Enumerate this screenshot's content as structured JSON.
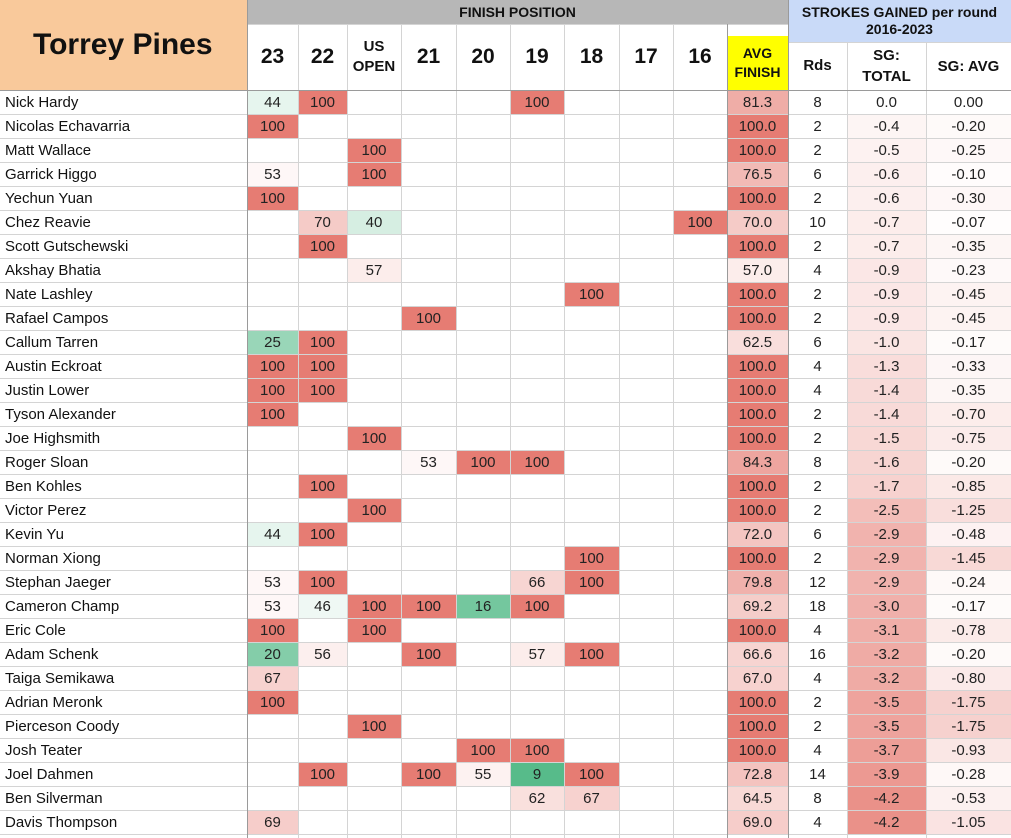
{
  "title": "Torrey Pines",
  "header": {
    "finish_position": "FINISH POSITION",
    "strokes_gained": "STROKES GAINED per round 2016-2023",
    "years": [
      "23",
      "22",
      "US OPEN",
      "21",
      "20",
      "19",
      "18",
      "17",
      "16"
    ],
    "avg_finish": "AVG FINISH",
    "rds": "Rds",
    "sg_total": "SG: TOTAL",
    "sg_avg": "SG: AVG"
  },
  "colors": {
    "title_bg": "#f9c99b",
    "finish_header_bg": "#b7b7b7",
    "sg_header_bg": "#c9daf8",
    "avg_header_bg": "#ffff00",
    "worst_finish": "#e67c73",
    "best_finish": "#57bb8a",
    "sg_negative": "#e67c73"
  },
  "rows": [
    {
      "name": "Nick Hardy",
      "f": [
        "44",
        "100",
        "",
        "",
        "",
        "100",
        "",
        "",
        ""
      ],
      "avg": "81.3",
      "rds": "8",
      "sg_total": "0.0",
      "sg_avg": "0.00"
    },
    {
      "name": "Nicolas Echavarria",
      "f": [
        "100",
        "",
        "",
        "",
        "",
        "",
        "",
        "",
        ""
      ],
      "avg": "100.0",
      "rds": "2",
      "sg_total": "-0.4",
      "sg_avg": "-0.20"
    },
    {
      "name": "Matt Wallace",
      "f": [
        "",
        "",
        "100",
        "",
        "",
        "",
        "",
        "",
        ""
      ],
      "avg": "100.0",
      "rds": "2",
      "sg_total": "-0.5",
      "sg_avg": "-0.25"
    },
    {
      "name": "Garrick Higgo",
      "f": [
        "53",
        "",
        "100",
        "",
        "",
        "",
        "",
        "",
        ""
      ],
      "avg": "76.5",
      "rds": "6",
      "sg_total": "-0.6",
      "sg_avg": "-0.10"
    },
    {
      "name": "Yechun Yuan",
      "f": [
        "100",
        "",
        "",
        "",
        "",
        "",
        "",
        "",
        ""
      ],
      "avg": "100.0",
      "rds": "2",
      "sg_total": "-0.6",
      "sg_avg": "-0.30"
    },
    {
      "name": "Chez Reavie",
      "f": [
        "",
        "70",
        "40",
        "",
        "",
        "",
        "",
        "",
        "100"
      ],
      "avg": "70.0",
      "rds": "10",
      "sg_total": "-0.7",
      "sg_avg": "-0.07"
    },
    {
      "name": "Scott Gutschewski",
      "f": [
        "",
        "100",
        "",
        "",
        "",
        "",
        "",
        "",
        ""
      ],
      "avg": "100.0",
      "rds": "2",
      "sg_total": "-0.7",
      "sg_avg": "-0.35"
    },
    {
      "name": "Akshay Bhatia",
      "f": [
        "",
        "",
        "57",
        "",
        "",
        "",
        "",
        "",
        ""
      ],
      "avg": "57.0",
      "rds": "4",
      "sg_total": "-0.9",
      "sg_avg": "-0.23"
    },
    {
      "name": "Nate Lashley",
      "f": [
        "",
        "",
        "",
        "",
        "",
        "",
        "100",
        "",
        ""
      ],
      "avg": "100.0",
      "rds": "2",
      "sg_total": "-0.9",
      "sg_avg": "-0.45"
    },
    {
      "name": "Rafael Campos",
      "f": [
        "",
        "",
        "",
        "100",
        "",
        "",
        "",
        "",
        ""
      ],
      "avg": "100.0",
      "rds": "2",
      "sg_total": "-0.9",
      "sg_avg": "-0.45"
    },
    {
      "name": "Callum Tarren",
      "f": [
        "25",
        "100",
        "",
        "",
        "",
        "",
        "",
        "",
        ""
      ],
      "avg": "62.5",
      "rds": "6",
      "sg_total": "-1.0",
      "sg_avg": "-0.17"
    },
    {
      "name": "Austin Eckroat",
      "f": [
        "100",
        "100",
        "",
        "",
        "",
        "",
        "",
        "",
        ""
      ],
      "avg": "100.0",
      "rds": "4",
      "sg_total": "-1.3",
      "sg_avg": "-0.33"
    },
    {
      "name": "Justin Lower",
      "f": [
        "100",
        "100",
        "",
        "",
        "",
        "",
        "",
        "",
        ""
      ],
      "avg": "100.0",
      "rds": "4",
      "sg_total": "-1.4",
      "sg_avg": "-0.35"
    },
    {
      "name": "Tyson Alexander",
      "f": [
        "100",
        "",
        "",
        "",
        "",
        "",
        "",
        "",
        ""
      ],
      "avg": "100.0",
      "rds": "2",
      "sg_total": "-1.4",
      "sg_avg": "-0.70"
    },
    {
      "name": "Joe Highsmith",
      "f": [
        "",
        "",
        "100",
        "",
        "",
        "",
        "",
        "",
        ""
      ],
      "avg": "100.0",
      "rds": "2",
      "sg_total": "-1.5",
      "sg_avg": "-0.75"
    },
    {
      "name": "Roger Sloan",
      "f": [
        "",
        "",
        "",
        "53",
        "100",
        "100",
        "",
        "",
        ""
      ],
      "avg": "84.3",
      "rds": "8",
      "sg_total": "-1.6",
      "sg_avg": "-0.20"
    },
    {
      "name": "Ben Kohles",
      "f": [
        "",
        "100",
        "",
        "",
        "",
        "",
        "",
        "",
        ""
      ],
      "avg": "100.0",
      "rds": "2",
      "sg_total": "-1.7",
      "sg_avg": "-0.85"
    },
    {
      "name": "Victor Perez",
      "f": [
        "",
        "",
        "100",
        "",
        "",
        "",
        "",
        "",
        ""
      ],
      "avg": "100.0",
      "rds": "2",
      "sg_total": "-2.5",
      "sg_avg": "-1.25"
    },
    {
      "name": "Kevin Yu",
      "f": [
        "44",
        "100",
        "",
        "",
        "",
        "",
        "",
        "",
        ""
      ],
      "avg": "72.0",
      "rds": "6",
      "sg_total": "-2.9",
      "sg_avg": "-0.48"
    },
    {
      "name": "Norman Xiong",
      "f": [
        "",
        "",
        "",
        "",
        "",
        "",
        "100",
        "",
        ""
      ],
      "avg": "100.0",
      "rds": "2",
      "sg_total": "-2.9",
      "sg_avg": "-1.45"
    },
    {
      "name": "Stephan Jaeger",
      "f": [
        "53",
        "100",
        "",
        "",
        "",
        "66",
        "100",
        "",
        ""
      ],
      "avg": "79.8",
      "rds": "12",
      "sg_total": "-2.9",
      "sg_avg": "-0.24"
    },
    {
      "name": "Cameron Champ",
      "f": [
        "53",
        "46",
        "100",
        "100",
        "16",
        "100",
        "",
        "",
        ""
      ],
      "avg": "69.2",
      "rds": "18",
      "sg_total": "-3.0",
      "sg_avg": "-0.17"
    },
    {
      "name": "Eric Cole",
      "f": [
        "100",
        "",
        "100",
        "",
        "",
        "",
        "",
        "",
        ""
      ],
      "avg": "100.0",
      "rds": "4",
      "sg_total": "-3.1",
      "sg_avg": "-0.78"
    },
    {
      "name": "Adam Schenk",
      "f": [
        "20",
        "56",
        "",
        "100",
        "",
        "57",
        "100",
        "",
        ""
      ],
      "avg": "66.6",
      "rds": "16",
      "sg_total": "-3.2",
      "sg_avg": "-0.20"
    },
    {
      "name": "Taiga Semikawa",
      "f": [
        "67",
        "",
        "",
        "",
        "",
        "",
        "",
        "",
        ""
      ],
      "avg": "67.0",
      "rds": "4",
      "sg_total": "-3.2",
      "sg_avg": "-0.80"
    },
    {
      "name": "Adrian Meronk",
      "f": [
        "100",
        "",
        "",
        "",
        "",
        "",
        "",
        "",
        ""
      ],
      "avg": "100.0",
      "rds": "2",
      "sg_total": "-3.5",
      "sg_avg": "-1.75"
    },
    {
      "name": "Pierceson Coody",
      "f": [
        "",
        "",
        "100",
        "",
        "",
        "",
        "",
        "",
        ""
      ],
      "avg": "100.0",
      "rds": "2",
      "sg_total": "-3.5",
      "sg_avg": "-1.75"
    },
    {
      "name": "Josh Teater",
      "f": [
        "",
        "",
        "",
        "",
        "100",
        "100",
        "",
        "",
        ""
      ],
      "avg": "100.0",
      "rds": "4",
      "sg_total": "-3.7",
      "sg_avg": "-0.93"
    },
    {
      "name": "Joel Dahmen",
      "f": [
        "",
        "100",
        "",
        "100",
        "55",
        "9",
        "100",
        "",
        ""
      ],
      "avg": "72.8",
      "rds": "14",
      "sg_total": "-3.9",
      "sg_avg": "-0.28"
    },
    {
      "name": "Ben Silverman",
      "f": [
        "",
        "",
        "",
        "",
        "",
        "62",
        "67",
        "",
        ""
      ],
      "avg": "64.5",
      "rds": "8",
      "sg_total": "-4.2",
      "sg_avg": "-0.53"
    },
    {
      "name": "Davis Thompson",
      "f": [
        "69",
        "",
        "",
        "",
        "",
        "",
        "",
        "",
        ""
      ],
      "avg": "69.0",
      "rds": "4",
      "sg_total": "-4.2",
      "sg_avg": "-1.05"
    }
  ]
}
